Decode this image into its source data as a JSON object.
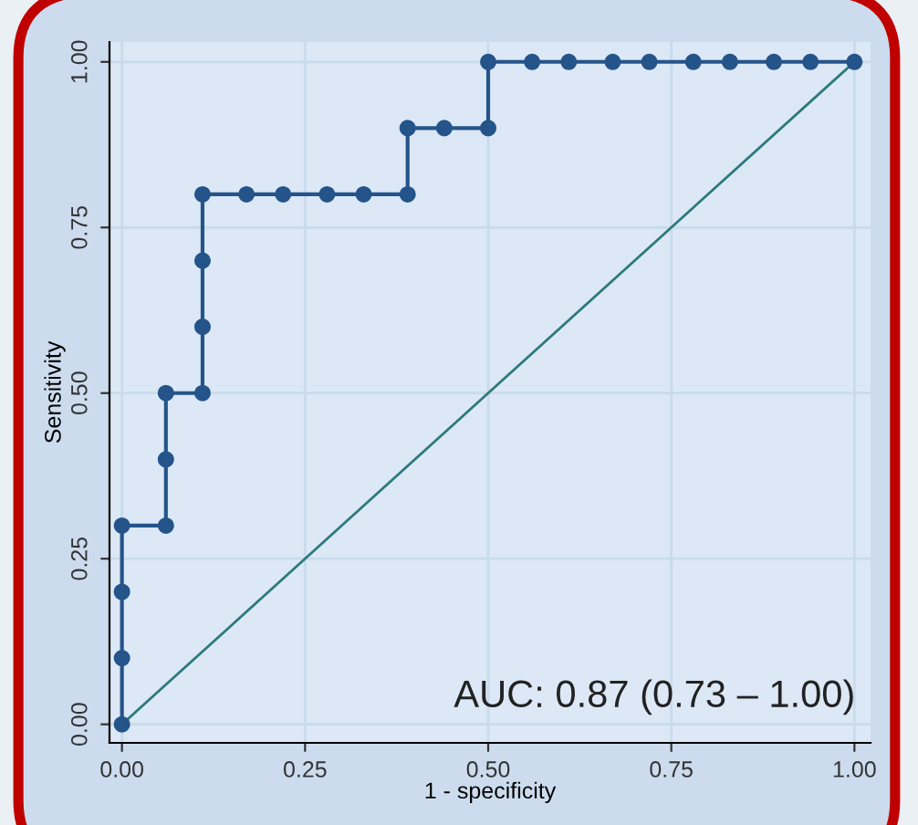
{
  "chart_data": {
    "type": "line",
    "xlabel": "1 - specificity",
    "ylabel": "Sensitivity",
    "xlim": [
      -0.017,
      1.022
    ],
    "ylim": [
      -0.028,
      1.03
    ],
    "xticks": [
      {
        "value": 0,
        "label": "0.00"
      },
      {
        "value": 0.25,
        "label": "0.25"
      },
      {
        "value": 0.5,
        "label": "0.50"
      },
      {
        "value": 0.75,
        "label": "0.75"
      },
      {
        "value": 1,
        "label": "1.00"
      }
    ],
    "yticks": [
      {
        "value": 0,
        "label": "0.00"
      },
      {
        "value": 0.25,
        "label": "0.25"
      },
      {
        "value": 0.5,
        "label": "0.50"
      },
      {
        "value": 0.75,
        "label": "0.75"
      },
      {
        "value": 1,
        "label": "1.00"
      }
    ],
    "grid": true,
    "series": [
      {
        "color": "#24548a",
        "marker": "circle",
        "x": [
          0,
          0,
          0,
          0,
          0.06,
          0.06,
          0.06,
          0.11,
          0.11,
          0.11,
          0.11,
          0.17,
          0.22,
          0.28,
          0.33,
          0.39,
          0.39,
          0.44,
          0.5,
          0.5,
          0.56,
          0.61,
          0.67,
          0.72,
          0.78,
          0.83,
          0.89,
          0.94,
          1
        ],
        "values": [
          0,
          0.1,
          0.2,
          0.3,
          0.3,
          0.4,
          0.5,
          0.5,
          0.6,
          0.7,
          0.8,
          0.8,
          0.8,
          0.8,
          0.8,
          0.8,
          0.9,
          0.9,
          0.9,
          1,
          1,
          1,
          1,
          1,
          1,
          1,
          1,
          1,
          1
        ]
      },
      {
        "color": "#2e7a7c",
        "marker": "none",
        "x": [
          0,
          1
        ],
        "values": [
          0,
          1
        ]
      }
    ],
    "annotations": [
      "AUC: 0.87 (0.73 – 1.00)"
    ]
  }
}
